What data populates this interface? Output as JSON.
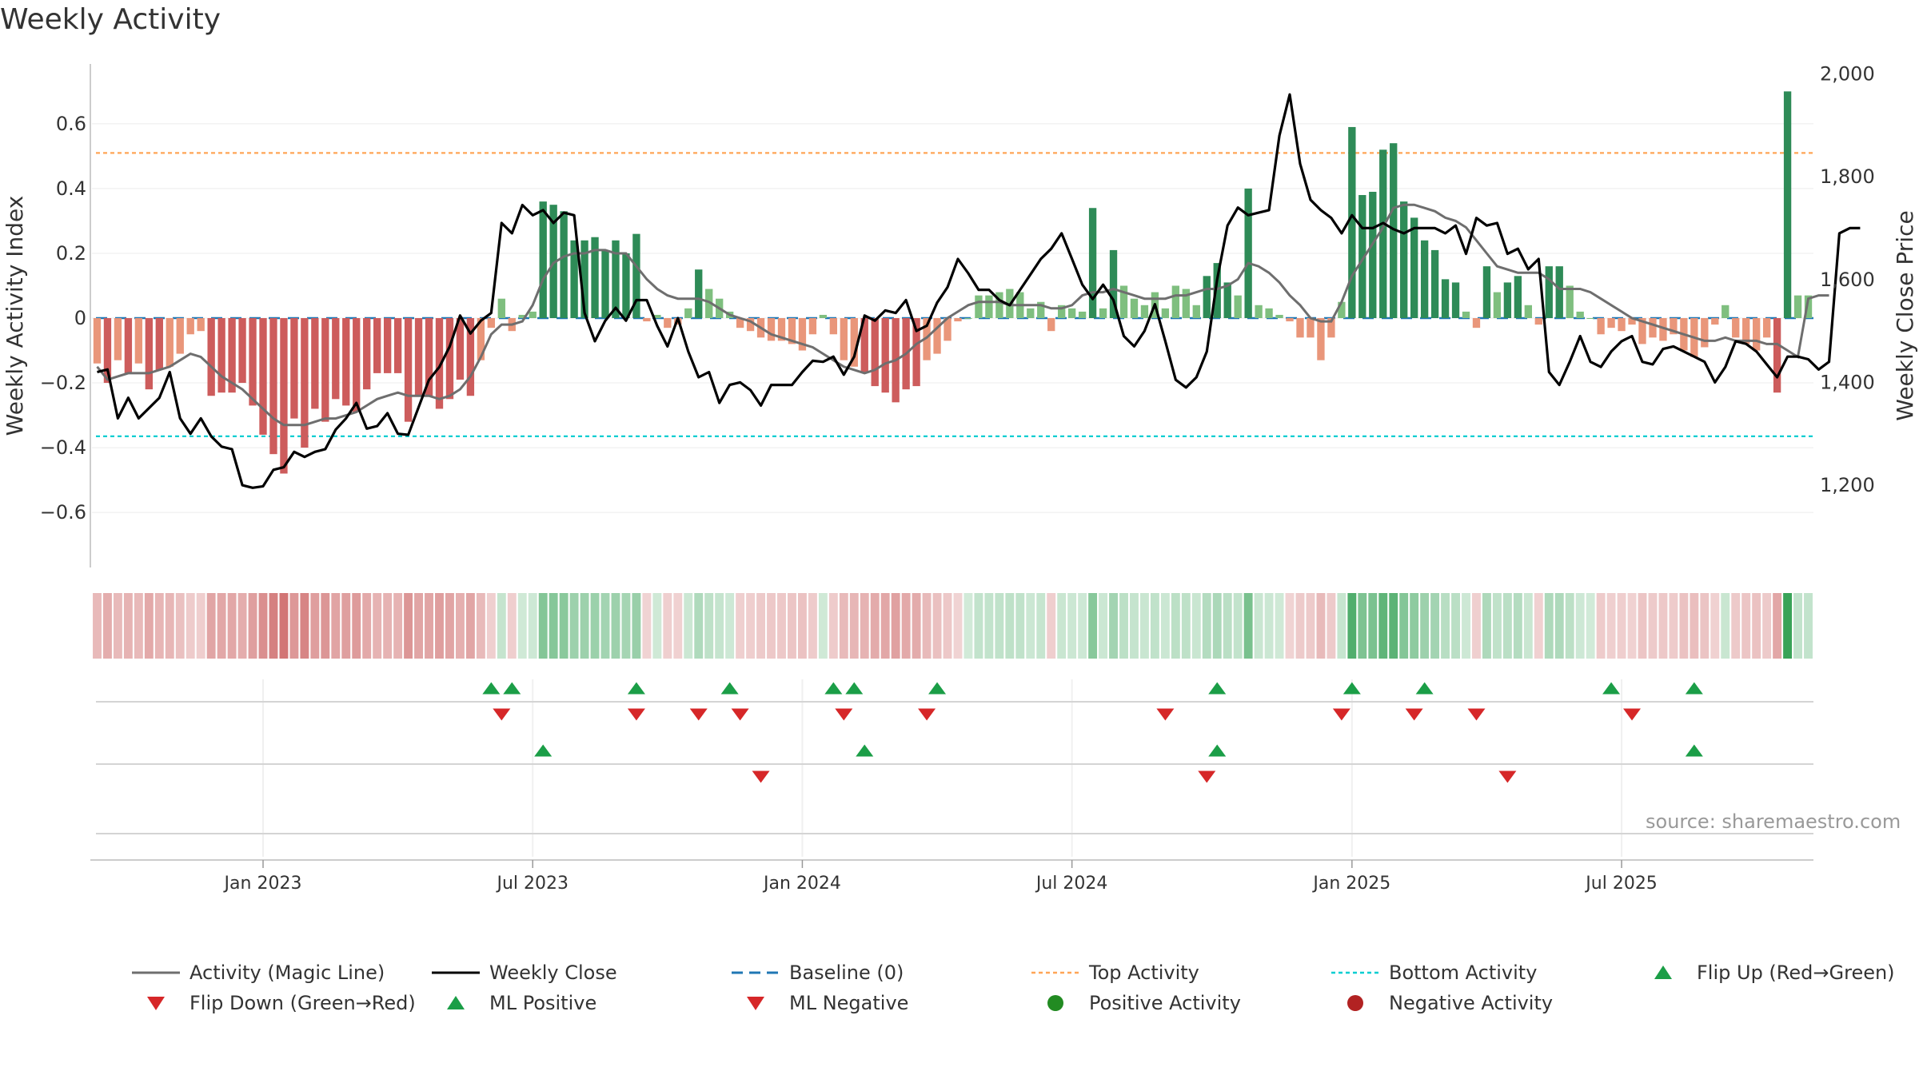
{
  "title": "Weekly Activity",
  "source": "source: sharemaestro.com",
  "colors": {
    "strong_pos": "#2e8b57",
    "light_pos": "#7fbf7f",
    "strong_neg": "#cd5c5c",
    "light_neg": "#e9967a",
    "magic_line": "#6e6e6e",
    "close": "#000000",
    "baseline": "#1f77b4",
    "top": "#ff7f0e",
    "bottom": "#00ced1",
    "flip_up": "#1b9e47",
    "flip_down": "#d62728"
  },
  "legend": [
    {
      "key": "magic",
      "label": "Activity (Magic Line)"
    },
    {
      "key": "close",
      "label": "Weekly Close"
    },
    {
      "key": "baseline",
      "label": "Baseline (0)"
    },
    {
      "key": "top",
      "label": "Top Activity"
    },
    {
      "key": "bottom",
      "label": "Bottom Activity"
    },
    {
      "key": "flipup",
      "label": "Flip Up (Red→Green)"
    },
    {
      "key": "flipdown",
      "label": "Flip Down (Green→Red)"
    },
    {
      "key": "mlpos",
      "label": "ML Positive"
    },
    {
      "key": "mlneg",
      "label": "ML Negative"
    },
    {
      "key": "posact",
      "label": "Positive Activity"
    },
    {
      "key": "negact",
      "label": "Negative Activity"
    }
  ],
  "chart_data": {
    "type": "bar",
    "title": "Weekly Activity",
    "ylabel": "Weekly Activity Index",
    "y2label": "Weekly Close Price",
    "ylim": [
      -0.77,
      0.77
    ],
    "y2lim": [
      1040,
      2010
    ],
    "yticks": [
      -0.6,
      -0.4,
      -0.2,
      0,
      0.2,
      0.4,
      0.6
    ],
    "ytick_labels": [
      "−0.6",
      "−0.4",
      "−0.2",
      "0",
      "0.2",
      "0.4",
      "0.6"
    ],
    "y2ticks": [
      1200,
      1400,
      1600,
      1800,
      2000
    ],
    "y2tick_labels": [
      "1,200",
      "1,400",
      "1,600",
      "1,800",
      "2,000"
    ],
    "x_start": "2022-09-12",
    "x_step_days": 7,
    "xticks": [
      {
        "label": "Jan 2023",
        "week": 16
      },
      {
        "label": "Jul 2023",
        "week": 42
      },
      {
        "label": "Jan 2024",
        "week": 68
      },
      {
        "label": "Jul 2024",
        "week": 94
      },
      {
        "label": "Jan 2025",
        "week": 121
      },
      {
        "label": "Jul 2025",
        "week": 147
      }
    ],
    "top_activity": 0.51,
    "bottom_activity": -0.365,
    "activity": [
      -0.14,
      -0.2,
      -0.13,
      -0.17,
      -0.14,
      -0.22,
      -0.16,
      -0.15,
      -0.11,
      -0.05,
      -0.04,
      -0.24,
      -0.23,
      -0.23,
      -0.2,
      -0.27,
      -0.36,
      -0.42,
      -0.48,
      -0.31,
      -0.4,
      -0.28,
      -0.32,
      -0.25,
      -0.27,
      -0.29,
      -0.22,
      -0.17,
      -0.17,
      -0.17,
      -0.32,
      -0.24,
      -0.24,
      -0.28,
      -0.25,
      -0.19,
      -0.24,
      -0.13,
      -0.03,
      0.06,
      -0.04,
      0.01,
      0.02,
      0.36,
      0.35,
      0.33,
      0.24,
      0.24,
      0.25,
      0.21,
      0.24,
      0.2,
      0.26,
      -0.01,
      0.01,
      -0.03,
      -0.02,
      0.03,
      0.15,
      0.09,
      0.06,
      0.02,
      -0.03,
      -0.04,
      -0.06,
      -0.07,
      -0.07,
      -0.08,
      -0.1,
      -0.05,
      0.01,
      -0.05,
      -0.13,
      -0.15,
      -0.17,
      -0.21,
      -0.23,
      -0.26,
      -0.22,
      -0.21,
      -0.13,
      -0.11,
      -0.07,
      -0.01,
      0.0,
      0.07,
      0.07,
      0.08,
      0.09,
      0.08,
      0.03,
      0.05,
      -0.04,
      0.04,
      0.03,
      0.02,
      0.34,
      0.03,
      0.21,
      0.1,
      0.06,
      0.04,
      0.08,
      0.03,
      0.1,
      0.09,
      0.04,
      0.13,
      0.17,
      0.11,
      0.07,
      0.4,
      0.04,
      0.03,
      0.01,
      -0.01,
      -0.06,
      -0.06,
      -0.13,
      -0.06,
      0.05,
      0.59,
      0.38,
      0.39,
      0.52,
      0.54,
      0.36,
      0.31,
      0.24,
      0.21,
      0.12,
      0.11,
      0.02,
      -0.03,
      0.16,
      0.08,
      0.11,
      0.13,
      0.04,
      -0.02,
      0.16,
      0.16,
      0.1,
      0.02,
      0.0,
      -0.05,
      -0.03,
      -0.04,
      -0.02,
      -0.08,
      -0.06,
      -0.07,
      -0.05,
      -0.1,
      -0.12,
      -0.09,
      -0.02,
      0.04,
      -0.06,
      -0.08,
      -0.1,
      -0.06,
      -0.23,
      0.7,
      0.07,
      0.07
    ],
    "magic_line": [
      -0.15,
      -0.19,
      -0.18,
      -0.17,
      -0.17,
      -0.17,
      -0.16,
      -0.15,
      -0.13,
      -0.11,
      -0.12,
      -0.15,
      -0.18,
      -0.2,
      -0.22,
      -0.25,
      -0.28,
      -0.31,
      -0.33,
      -0.33,
      -0.33,
      -0.32,
      -0.31,
      -0.31,
      -0.3,
      -0.29,
      -0.27,
      -0.25,
      -0.24,
      -0.23,
      -0.24,
      -0.24,
      -0.24,
      -0.25,
      -0.24,
      -0.22,
      -0.18,
      -0.12,
      -0.05,
      -0.02,
      -0.02,
      -0.01,
      0.04,
      0.12,
      0.17,
      0.19,
      0.2,
      0.2,
      0.21,
      0.21,
      0.2,
      0.2,
      0.16,
      0.12,
      0.09,
      0.07,
      0.06,
      0.06,
      0.06,
      0.05,
      0.03,
      0.01,
      0.0,
      -0.01,
      -0.03,
      -0.05,
      -0.06,
      -0.07,
      -0.08,
      -0.09,
      -0.11,
      -0.13,
      -0.15,
      -0.16,
      -0.17,
      -0.16,
      -0.14,
      -0.13,
      -0.11,
      -0.08,
      -0.06,
      -0.03,
      0.0,
      0.02,
      0.04,
      0.05,
      0.05,
      0.05,
      0.04,
      0.04,
      0.04,
      0.04,
      0.03,
      0.03,
      0.04,
      0.07,
      0.08,
      0.08,
      0.09,
      0.08,
      0.07,
      0.06,
      0.06,
      0.06,
      0.07,
      0.07,
      0.08,
      0.09,
      0.09,
      0.1,
      0.12,
      0.17,
      0.16,
      0.14,
      0.11,
      0.07,
      0.04,
      0.0,
      -0.01,
      -0.01,
      0.05,
      0.13,
      0.18,
      0.23,
      0.28,
      0.34,
      0.35,
      0.35,
      0.34,
      0.33,
      0.31,
      0.3,
      0.28,
      0.24,
      0.2,
      0.16,
      0.15,
      0.14,
      0.14,
      0.14,
      0.12,
      0.09,
      0.09,
      0.09,
      0.08,
      0.06,
      0.04,
      0.02,
      0.0,
      -0.01,
      -0.02,
      -0.03,
      -0.04,
      -0.05,
      -0.06,
      -0.07,
      -0.07,
      -0.06,
      -0.07,
      -0.07,
      -0.07,
      -0.08,
      -0.08,
      -0.1,
      -0.12,
      0.06,
      0.07,
      0.07
    ],
    "close": [
      1420,
      1425,
      1330,
      1370,
      1330,
      1350,
      1370,
      1420,
      1330,
      1300,
      1330,
      1295,
      1275,
      1270,
      1200,
      1195,
      1198,
      1230,
      1235,
      1265,
      1255,
      1265,
      1270,
      1308,
      1330,
      1360,
      1310,
      1315,
      1340,
      1300,
      1298,
      1352,
      1405,
      1430,
      1470,
      1530,
      1495,
      1520,
      1535,
      1710,
      1690,
      1745,
      1725,
      1735,
      1710,
      1730,
      1725,
      1535,
      1480,
      1520,
      1545,
      1520,
      1560,
      1560,
      1510,
      1470,
      1525,
      1460,
      1410,
      1420,
      1360,
      1395,
      1400,
      1385,
      1355,
      1395,
      1395,
      1395,
      1420,
      1442,
      1440,
      1450,
      1415,
      1450,
      1530,
      1520,
      1540,
      1535,
      1560,
      1500,
      1510,
      1555,
      1585,
      1640,
      1612,
      1580,
      1580,
      1560,
      1550,
      1580,
      1610,
      1640,
      1660,
      1690,
      1640,
      1590,
      1562,
      1590,
      1560,
      1490,
      1470,
      1500,
      1552,
      1480,
      1405,
      1390,
      1410,
      1460,
      1600,
      1705,
      1740,
      1725,
      1730,
      1735,
      1880,
      1960,
      1825,
      1755,
      1735,
      1720,
      1690,
      1725,
      1700,
      1700,
      1710,
      1698,
      1690,
      1700,
      1700,
      1700,
      1690,
      1705,
      1650,
      1720,
      1705,
      1710,
      1650,
      1660,
      1620,
      1640,
      1420,
      1395,
      1440,
      1490,
      1440,
      1430,
      1460,
      1480,
      1490,
      1440,
      1435,
      1465,
      1470,
      1460,
      1450,
      1440,
      1400,
      1430,
      1480,
      1475,
      1460,
      1435,
      1410,
      1450,
      1450,
      1445,
      1425,
      1440,
      1690,
      1700,
      1700
    ],
    "activity_strip": [
      -0.14,
      -0.2,
      -0.13,
      -0.17,
      -0.14,
      -0.22,
      -0.16,
      -0.15,
      -0.11,
      -0.05,
      -0.04,
      -0.24,
      -0.23,
      -0.23,
      -0.2,
      -0.27,
      -0.36,
      -0.42,
      -0.48,
      -0.31,
      -0.4,
      -0.28,
      -0.32,
      -0.25,
      -0.27,
      -0.29,
      -0.22,
      -0.17,
      -0.17,
      -0.17,
      -0.32,
      -0.24,
      -0.24,
      -0.28,
      -0.25,
      -0.19,
      -0.24,
      -0.13,
      -0.03,
      0.06,
      -0.04,
      0.01,
      0.02,
      0.36,
      0.35,
      0.33,
      0.24,
      0.24,
      0.25,
      0.21,
      0.24,
      0.2,
      0.26,
      -0.01,
      0.01,
      -0.03,
      -0.02,
      0.03,
      0.15,
      0.09,
      0.06,
      0.02,
      -0.03,
      -0.04,
      -0.06,
      -0.07,
      -0.07,
      -0.08,
      -0.1,
      -0.05,
      0.01,
      -0.05,
      -0.13,
      -0.15,
      -0.17,
      -0.21,
      -0.23,
      -0.26,
      -0.22,
      -0.21,
      -0.13,
      -0.11,
      -0.07,
      -0.01,
      0.0,
      0.07,
      0.07,
      0.08,
      0.09,
      0.08,
      0.03,
      0.05,
      -0.04,
      0.04,
      0.03,
      0.02,
      0.34,
      0.03,
      0.21,
      0.1,
      0.06,
      0.04,
      0.08,
      0.03,
      0.1,
      0.09,
      0.04,
      0.13,
      0.17,
      0.11,
      0.07,
      0.4,
      0.04,
      0.03,
      0.01,
      -0.01,
      -0.06,
      -0.06,
      -0.13,
      -0.06,
      0.05,
      0.59,
      0.38,
      0.39,
      0.52,
      0.54,
      0.36,
      0.31,
      0.24,
      0.21,
      0.12,
      0.11,
      0.02,
      -0.03,
      0.16,
      0.08,
      0.11,
      0.13,
      0.04,
      -0.02,
      0.16,
      0.16,
      0.1,
      0.02,
      0.0,
      -0.05,
      -0.03,
      -0.04,
      -0.02,
      -0.08,
      -0.06,
      -0.07,
      -0.05,
      -0.1,
      -0.12,
      -0.09,
      -0.02,
      0.04,
      -0.06,
      -0.08,
      -0.1,
      -0.06,
      -0.23,
      0.7,
      0.07,
      0.07
    ],
    "flip_up": [
      38,
      40,
      52,
      61,
      71,
      73,
      81,
      108,
      121,
      128,
      146,
      154
    ],
    "flip_down": [
      39,
      52,
      58,
      62,
      72,
      80,
      103,
      120,
      127,
      133,
      148
    ],
    "ml_positive": [
      43,
      74,
      108,
      154
    ],
    "ml_negative": [
      64,
      107,
      136
    ]
  }
}
